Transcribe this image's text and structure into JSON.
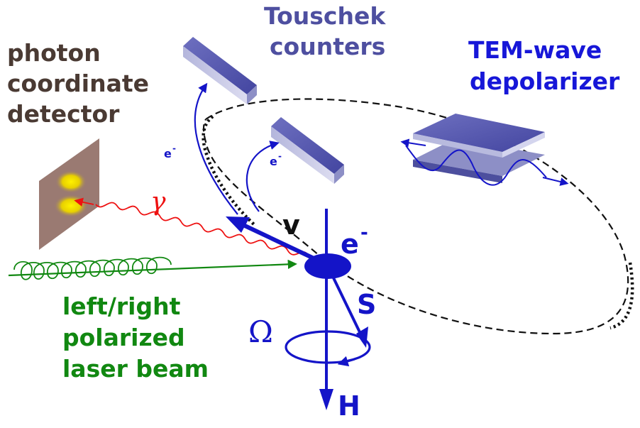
{
  "labels": {
    "photon_detector": [
      "photon",
      "coordinate",
      "detector"
    ],
    "touschek": [
      "Touschek",
      "counters"
    ],
    "depolarizer": [
      "TEM-wave",
      "depolarizer"
    ],
    "laser": [
      "left/right",
      "polarized",
      "laser beam"
    ],
    "gamma": "γ",
    "velocity": "v",
    "electron": "e",
    "electron_sup": "-",
    "electron_small": "e",
    "spin": "S",
    "omega": "Ω",
    "field": "H"
  },
  "colors": {
    "detector_label": "#4a3a33",
    "touschek_label": "#4e4fa0",
    "depolarizer_label": "#1717d8",
    "laser": "#118811",
    "photon": "#ee1111",
    "electron": "#1414c8",
    "counter_block": "#4d4f9e",
    "detector_plate": "#9a7a72",
    "spot": "#f2e000"
  }
}
